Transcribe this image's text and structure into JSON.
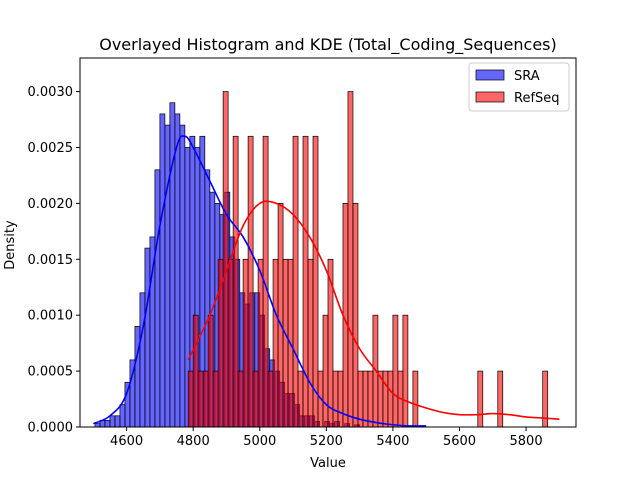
{
  "chart_data": {
    "type": "histogram",
    "title": "Overlayed Histogram and KDE (Total_Coding_Sequences)",
    "xlabel": "Value",
    "ylabel": "Density",
    "xlim": [
      4460,
      5950
    ],
    "ylim": [
      0,
      0.0033
    ],
    "xticks": [
      4600,
      4800,
      5000,
      5200,
      5400,
      5600,
      5800
    ],
    "yticks": [
      0.0,
      0.0005,
      0.001,
      0.0015,
      0.002,
      0.0025,
      0.003
    ],
    "legend_position": "top-right",
    "bin_width": 15,
    "series": [
      {
        "name": "SRA",
        "color": "#0000ff",
        "alpha": 0.6,
        "hist": {
          "start": 4505,
          "densities": [
            3e-05,
            6e-05,
            6e-05,
            0.0001,
            0.0001,
            0.0002,
            0.0004,
            0.0006,
            0.0009,
            0.0012,
            0.0016,
            0.0017,
            0.0023,
            0.0028,
            0.0027,
            0.0029,
            0.0028,
            0.0027,
            0.0025,
            0.0026,
            0.0025,
            0.0026,
            0.0023,
            0.0021,
            0.002,
            0.0019,
            0.0021,
            0.0017,
            0.0015,
            0.0012,
            0.0011,
            0.0012,
            0.0012,
            0.001,
            0.0007,
            0.0006,
            0.0005,
            0.0004,
            0.0003,
            0.0003,
            0.0002,
            0.0001,
            0.0001,
            0.0001,
            5e-05,
            0.0,
            5e-05,
            3e-05,
            5e-05,
            0.0,
            3e-05,
            0.0,
            2e-05
          ]
        },
        "kde": {
          "x": [
            4500,
            4550,
            4600,
            4650,
            4700,
            4750,
            4775,
            4800,
            4850,
            4900,
            4950,
            5000,
            5050,
            5100,
            5150,
            5200,
            5250,
            5300,
            5350,
            5400,
            5450,
            5500
          ],
          "y": [
            3e-05,
            0.0001,
            0.0003,
            0.0009,
            0.0018,
            0.0025,
            0.0026,
            0.0025,
            0.0022,
            0.0019,
            0.0017,
            0.0014,
            0.001,
            0.0007,
            0.0004,
            0.0002,
            0.00012,
            7e-05,
            4e-05,
            2e-05,
            1e-05,
            1e-05
          ]
        }
      },
      {
        "name": "RefSeq",
        "color": "#ff0000",
        "alpha": 0.6,
        "hist": {
          "start": 4785,
          "densities": [
            0.0005,
            0.001,
            0.0005,
            0.0005,
            0.001,
            0.0005,
            0.0015,
            0.003,
            0.0015,
            0.0026,
            0.0005,
            0.0015,
            0.0026,
            0.0005,
            0.0015,
            0.0026,
            0.0005,
            0.0015,
            0.002,
            0.0015,
            0.0015,
            0.0026,
            0.0005,
            0.0026,
            0.0015,
            0.0026,
            0.0005,
            0.001,
            0.0015,
            0.0005,
            0.0005,
            0.002,
            0.003,
            0.002,
            0.0005,
            0.0005,
            0.0005,
            0.001,
            0.0005,
            0.0005,
            0.0005,
            0.001,
            0.0005,
            0.001,
            0.0,
            0.0005,
            0.0,
            0.0,
            0.0,
            0.0,
            0.0,
            0.0,
            0.0,
            0.0,
            0.0,
            0.0,
            0.0,
            0.0,
            0.0005,
            0.0,
            0.0,
            0.0,
            0.0005,
            0.0,
            0.0,
            0.0,
            0.0,
            0.0,
            0.0,
            0.0,
            0.0,
            0.0005
          ]
        },
        "kde": {
          "x": [
            4785,
            4850,
            4900,
            4950,
            5000,
            5050,
            5100,
            5150,
            5200,
            5250,
            5300,
            5350,
            5400,
            5450,
            5500,
            5550,
            5600,
            5650,
            5700,
            5750,
            5800,
            5850,
            5900
          ],
          "y": [
            0.0006,
            0.001,
            0.0014,
            0.0018,
            0.002,
            0.002,
            0.0019,
            0.0017,
            0.0014,
            0.001,
            0.0007,
            0.0005,
            0.0003,
            0.00022,
            0.00017,
            0.00013,
            0.00011,
            0.00011,
            0.00012,
            0.00011,
            9e-05,
            8e-05,
            7e-05
          ]
        }
      }
    ]
  }
}
